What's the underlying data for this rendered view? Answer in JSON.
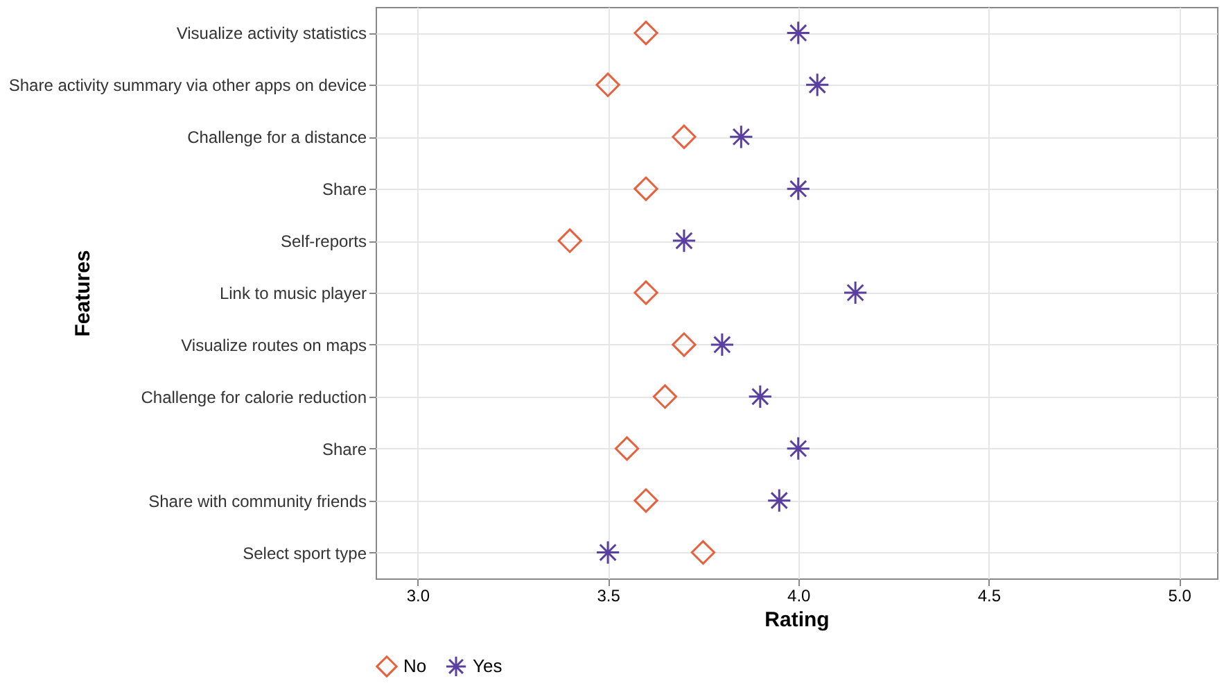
{
  "chart_data": {
    "type": "scatter",
    "xlabel": "Rating",
    "ylabel": "Features",
    "categories": [
      "Visualize activity statistics",
      "Share activity summary via other apps on device",
      "Challenge for a distance",
      "Share",
      "Self-reports",
      "Link to music player",
      "Visualize routes on maps",
      "Challenge for calorie reduction",
      "Share",
      "Share with community friends",
      "Select sport type"
    ],
    "series": [
      {
        "name": "No",
        "color": "#e8603c",
        "marker": "diamond",
        "values": [
          3.6,
          3.5,
          3.7,
          3.6,
          3.4,
          3.6,
          3.7,
          3.65,
          3.55,
          3.6,
          3.75
        ]
      },
      {
        "name": "Yes",
        "color": "#5a3ea0",
        "marker": "cross",
        "values": [
          4.0,
          4.05,
          3.85,
          4.0,
          3.7,
          4.15,
          3.8,
          3.9,
          4.0,
          3.95,
          3.5
        ]
      }
    ],
    "orientation": "horizontal",
    "xlim": [
      2.89,
      5.1
    ],
    "xticks": [
      {
        "value": 3,
        "label": "3.0"
      },
      {
        "value": 3.5,
        "label": "3.5"
      },
      {
        "value": 4,
        "label": "4.0"
      },
      {
        "value": 4.5,
        "label": "4.5"
      },
      {
        "value": 5,
        "label": "5.0"
      }
    ],
    "grid": true,
    "legend": "bottom"
  }
}
